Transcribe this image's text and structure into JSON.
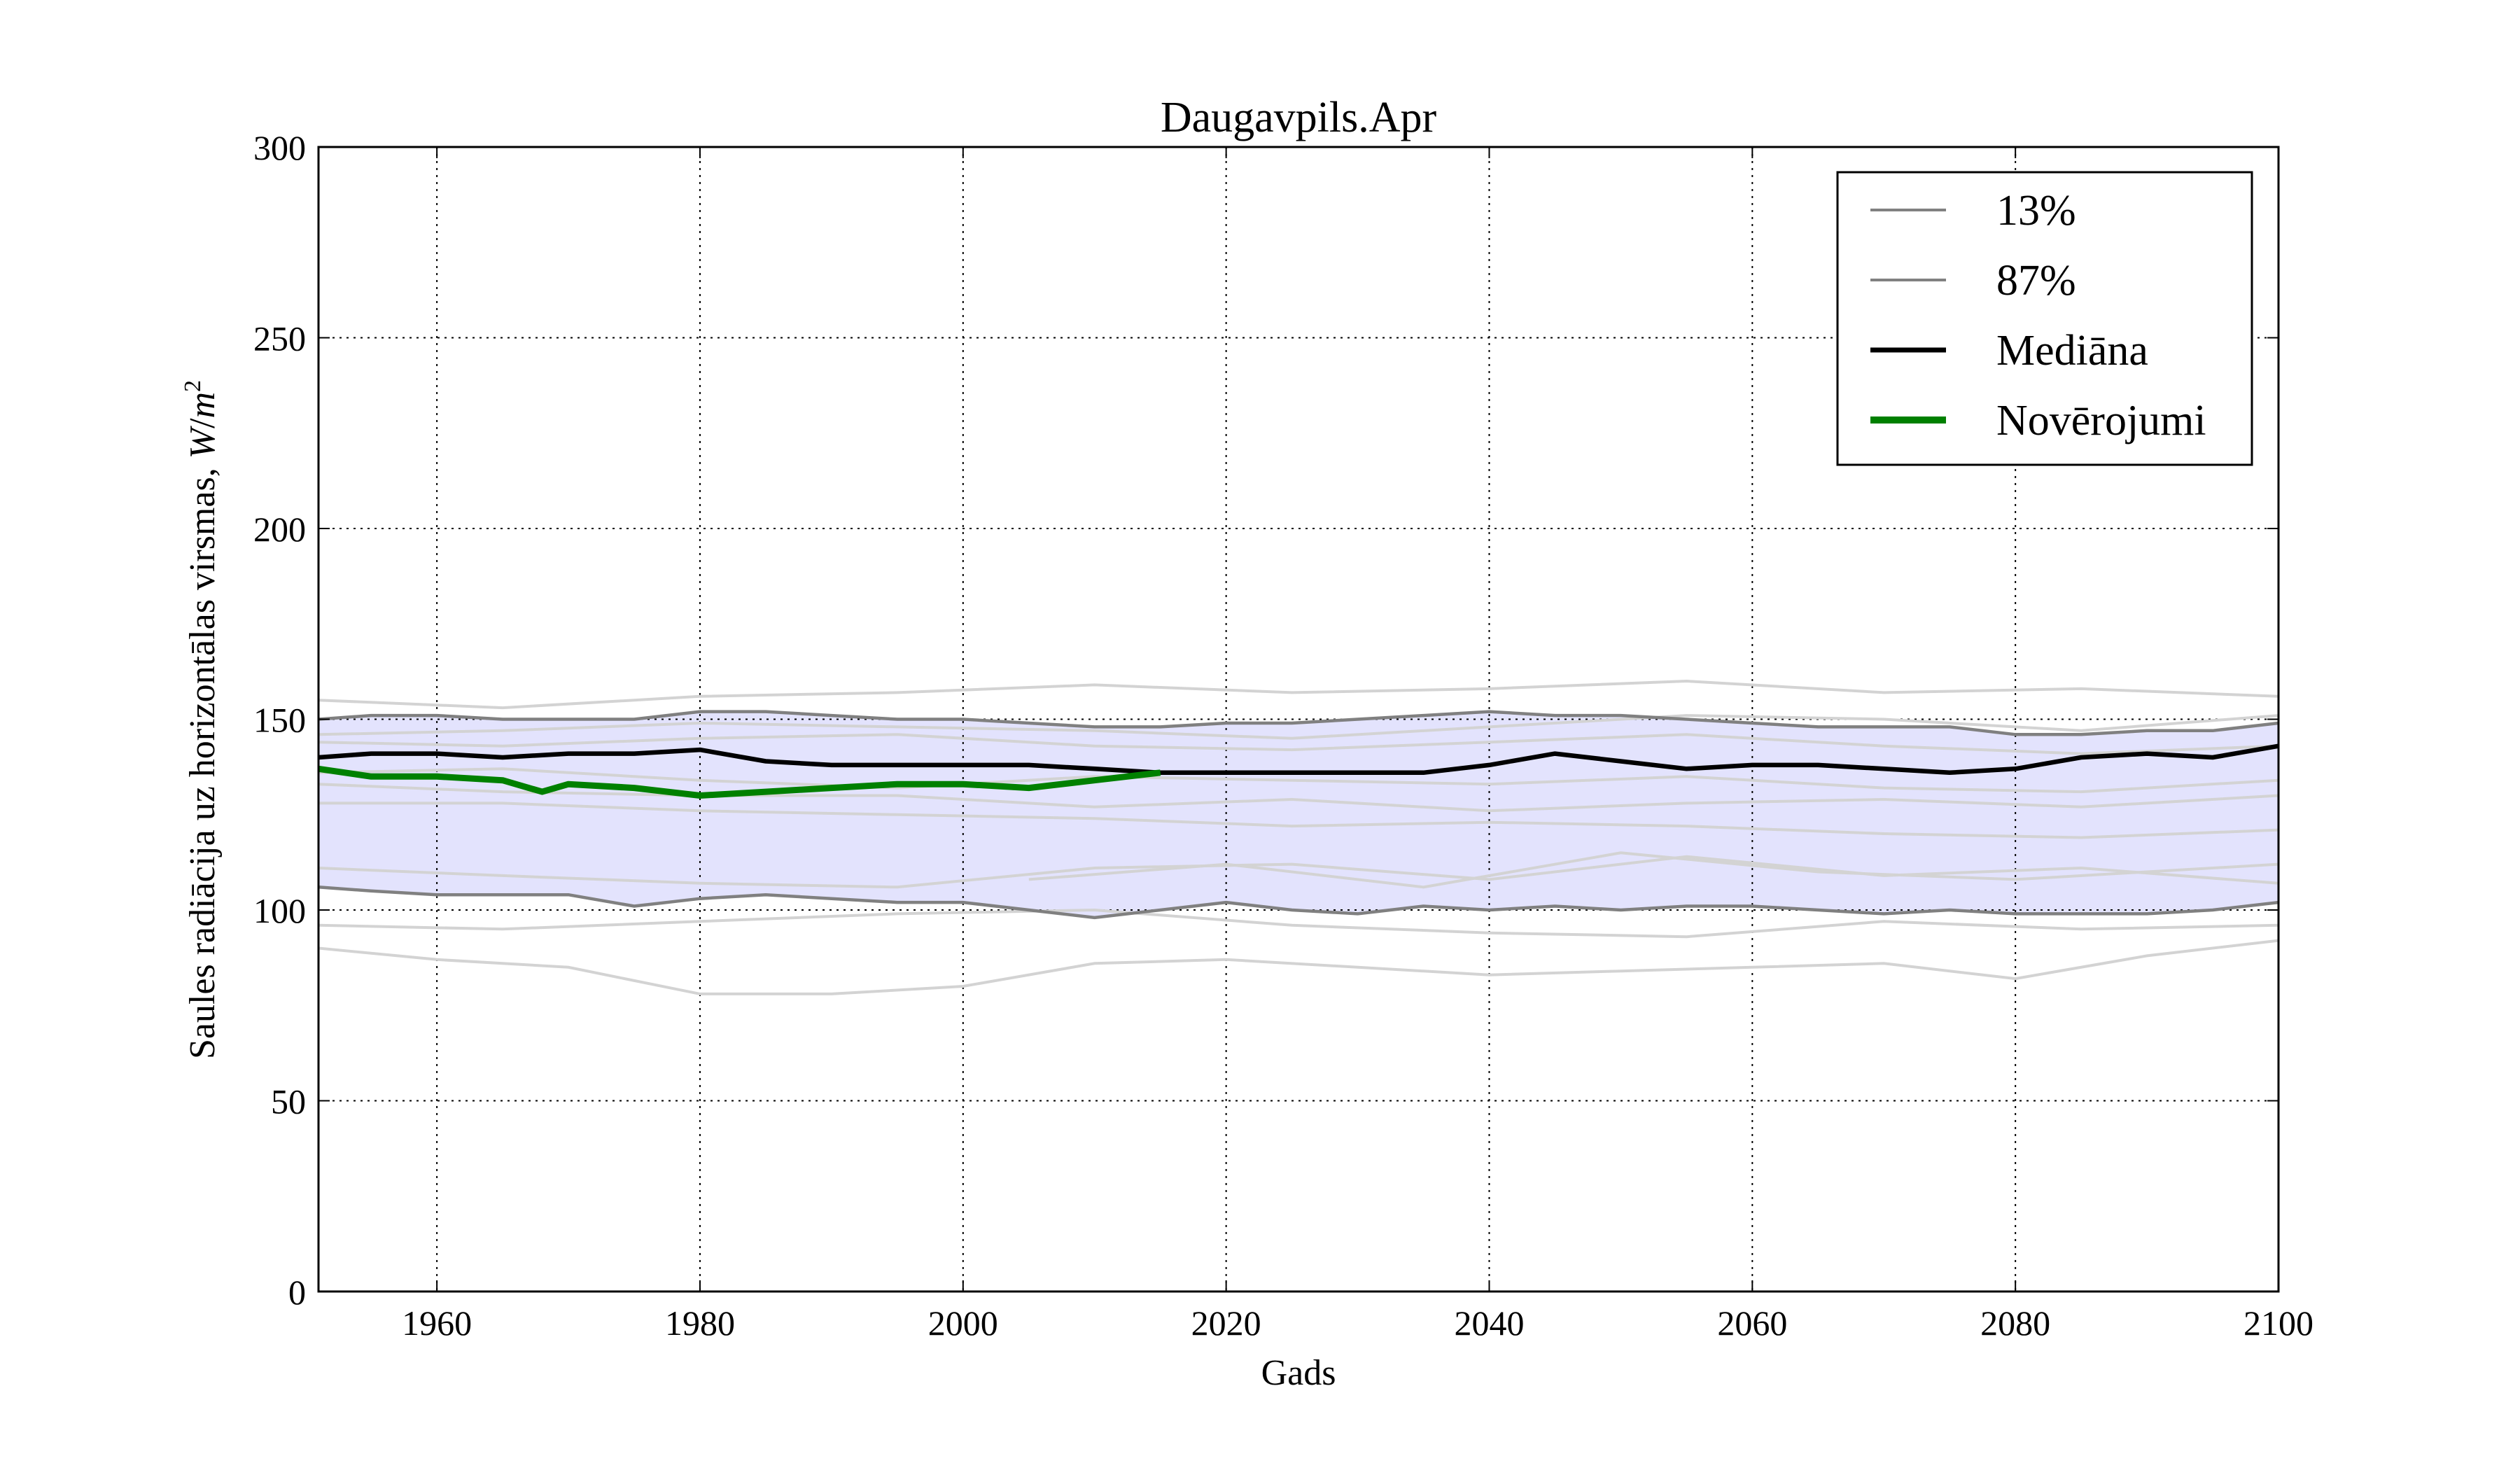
{
  "chart_data": {
    "type": "line",
    "title": "Daugavpils.Apr",
    "xlabel": "Gads",
    "ylabel_text": "Saules radiācija uz horizontālas virsmas, ",
    "ylabel_unit_W": "W",
    "ylabel_unit_sep": "/",
    "ylabel_unit_m": "m",
    "ylabel_unit_exp": "2",
    "xlim": [
      1951,
      2100
    ],
    "ylim": [
      0,
      300
    ],
    "x_ticks": [
      "1960",
      "1980",
      "2000",
      "2020",
      "2040",
      "2060",
      "2080",
      "2100"
    ],
    "y_ticks": [
      "0",
      "50",
      "100",
      "150",
      "200",
      "250",
      "300"
    ],
    "grid": true,
    "legend_position": "top-right",
    "band_color": "#e3e3fd",
    "colors": {
      "p13": "#808080",
      "p87": "#808080",
      "median": "#000000",
      "observed": "#008000",
      "ensemble": "#d3d3d3"
    },
    "series": [
      {
        "name": "13%",
        "x": [
          1951,
          1955,
          1960,
          1965,
          1970,
          1975,
          1980,
          1985,
          1990,
          1995,
          2000,
          2005,
          2010,
          2015,
          2020,
          2025,
          2030,
          2035,
          2040,
          2045,
          2050,
          2055,
          2060,
          2065,
          2070,
          2075,
          2080,
          2085,
          2090,
          2095,
          2100
        ],
        "values": [
          106,
          105,
          104,
          104,
          104,
          101,
          103,
          104,
          103,
          102,
          102,
          100,
          98,
          100,
          102,
          100,
          99,
          101,
          100,
          101,
          100,
          101,
          101,
          100,
          99,
          100,
          99,
          99,
          99,
          100,
          102
        ]
      },
      {
        "name": "87%",
        "x": [
          1951,
          1955,
          1960,
          1965,
          1970,
          1975,
          1980,
          1985,
          1990,
          1995,
          2000,
          2005,
          2010,
          2015,
          2020,
          2025,
          2030,
          2035,
          2040,
          2045,
          2050,
          2055,
          2060,
          2065,
          2070,
          2075,
          2080,
          2085,
          2090,
          2095,
          2100
        ],
        "values": [
          150,
          151,
          151,
          150,
          150,
          150,
          152,
          152,
          151,
          150,
          150,
          149,
          148,
          148,
          149,
          149,
          150,
          151,
          152,
          151,
          151,
          150,
          149,
          148,
          148,
          148,
          146,
          146,
          147,
          147,
          149
        ]
      },
      {
        "name": "Mediāna",
        "x": [
          1951,
          1955,
          1960,
          1965,
          1970,
          1975,
          1980,
          1985,
          1990,
          1995,
          2000,
          2005,
          2010,
          2015,
          2020,
          2025,
          2030,
          2035,
          2040,
          2045,
          2050,
          2055,
          2060,
          2065,
          2070,
          2075,
          2080,
          2085,
          2090,
          2095,
          2100
        ],
        "values": [
          140,
          141,
          141,
          140,
          141,
          141,
          142,
          139,
          138,
          138,
          138,
          138,
          137,
          136,
          136,
          136,
          136,
          136,
          138,
          141,
          139,
          137,
          138,
          138,
          137,
          136,
          137,
          140,
          141,
          140,
          143
        ]
      },
      {
        "name": "Novērojumi",
        "x": [
          1951,
          1955,
          1960,
          1965,
          1968,
          1970,
          1975,
          1980,
          1985,
          1990,
          1995,
          2000,
          2005,
          2010,
          2015
        ],
        "values": [
          137,
          135,
          135,
          134,
          131,
          133,
          132,
          130,
          131,
          132,
          133,
          133,
          132,
          134,
          136
        ]
      }
    ],
    "ensemble": [
      {
        "x": [
          1951,
          1965,
          1980,
          1995,
          2010,
          2025,
          2040,
          2055,
          2070,
          2085,
          2100
        ],
        "values": [
          155,
          153,
          156,
          157,
          159,
          157,
          158,
          160,
          157,
          158,
          156
        ]
      },
      {
        "x": [
          1951,
          1965,
          1980,
          1995,
          2010,
          2025,
          2040,
          2055,
          2070,
          2085,
          2100
        ],
        "values": [
          146,
          147,
          149,
          148,
          147,
          145,
          148,
          151,
          150,
          147,
          151
        ]
      },
      {
        "x": [
          1951,
          1965,
          1980,
          1995,
          2010,
          2025,
          2040,
          2055,
          2070,
          2085,
          2100
        ],
        "values": [
          144,
          143,
          145,
          146,
          143,
          142,
          144,
          146,
          143,
          141,
          143
        ]
      },
      {
        "x": [
          1951,
          1965,
          1980,
          1995,
          2010,
          2025,
          2040,
          2055,
          2070,
          2085,
          2100
        ],
        "values": [
          136,
          137,
          134,
          132,
          135,
          134,
          133,
          135,
          132,
          131,
          134
        ]
      },
      {
        "x": [
          1951,
          1965,
          1980,
          1995,
          2010,
          2025,
          2040,
          2055,
          2070,
          2085,
          2100
        ],
        "values": [
          133,
          131,
          130,
          130,
          127,
          129,
          126,
          128,
          129,
          127,
          130
        ]
      },
      {
        "x": [
          1951,
          1965,
          1980,
          1995,
          2010,
          2025,
          2040,
          2055,
          2070,
          2085,
          2100
        ],
        "values": [
          128,
          128,
          126,
          125,
          124,
          122,
          123,
          122,
          120,
          119,
          121
        ]
      },
      {
        "x": [
          1951,
          1965,
          1980,
          1995,
          2010,
          2025,
          2040,
          2055,
          2070,
          2085,
          2100
        ],
        "values": [
          111,
          109,
          107,
          106,
          111,
          112,
          108,
          114,
          109,
          111,
          107
        ]
      },
      {
        "x": [
          1951,
          1965,
          1980,
          1995,
          2010,
          2025,
          2040,
          2055,
          2070,
          2085,
          2100
        ],
        "values": [
          96,
          95,
          97,
          99,
          100,
          96,
          94,
          93,
          97,
          95,
          96
        ]
      },
      {
        "x": [
          1951,
          1960,
          1970,
          1980,
          1990,
          2000,
          2010,
          2020,
          2030,
          2040,
          2050,
          2060,
          2070,
          2080,
          2090,
          2100
        ],
        "values": [
          90,
          87,
          85,
          78,
          78,
          80,
          86,
          87,
          85,
          83,
          84,
          85,
          86,
          82,
          88,
          92
        ]
      },
      {
        "x": [
          2005,
          2020,
          2035,
          2050,
          2065,
          2080,
          2100
        ],
        "values": [
          108,
          112,
          106,
          115,
          110,
          108,
          112
        ]
      }
    ]
  }
}
